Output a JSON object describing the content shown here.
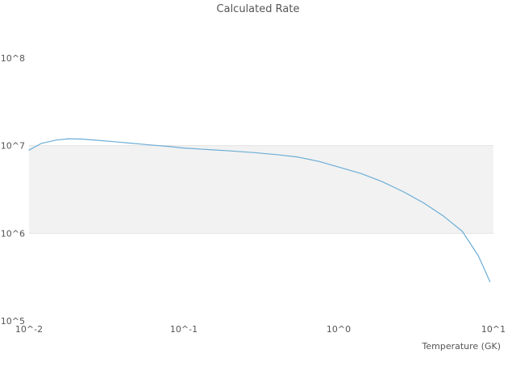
{
  "chart_data": {
    "type": "line",
    "title": "Calculated Rate",
    "xlabel": "Temperature (GK)",
    "ylabel": "",
    "xscale": "log",
    "yscale": "log",
    "xlim": [
      0.01,
      10
    ],
    "ylim": [
      100000,
      100000000
    ],
    "grid": false,
    "legend": false,
    "x_ticks": [
      {
        "value": 0.01,
        "label": "10^-2"
      },
      {
        "value": 0.1,
        "label": "10^-1"
      },
      {
        "value": 1,
        "label": "10^0"
      },
      {
        "value": 10,
        "label": "10^1"
      }
    ],
    "y_ticks": [
      {
        "value": 100000,
        "label": "10^5"
      },
      {
        "value": 1000000,
        "label": "10^6"
      },
      {
        "value": 10000000,
        "label": "10^7"
      },
      {
        "value": 100000000,
        "label": "10^8"
      }
    ],
    "band": {
      "from": 1000000,
      "to": 10000000,
      "color": "#f2f2f2",
      "edge_color": "#e2e2e2"
    },
    "series": [
      {
        "name": "calculated-rate",
        "color": "#6baed6",
        "x": [
          0.01,
          0.012,
          0.015,
          0.018,
          0.022,
          0.028,
          0.035,
          0.045,
          0.06,
          0.08,
          0.1,
          0.14,
          0.2,
          0.28,
          0.4,
          0.55,
          0.75,
          1.0,
          1.4,
          1.9,
          2.6,
          3.5,
          4.7,
          6.3,
          8.0,
          9.5
        ],
        "y": [
          8900000,
          10600000,
          11600000,
          12000000,
          11900000,
          11500000,
          11100000,
          10700000,
          10200000,
          9800000,
          9400000,
          9050000,
          8700000,
          8350000,
          7900000,
          7400000,
          6600000,
          5700000,
          4800000,
          3900000,
          3000000,
          2250000,
          1600000,
          1050000,
          550000,
          280000
        ]
      }
    ]
  },
  "colors": {
    "text": "#555555",
    "background": "#ffffff"
  }
}
